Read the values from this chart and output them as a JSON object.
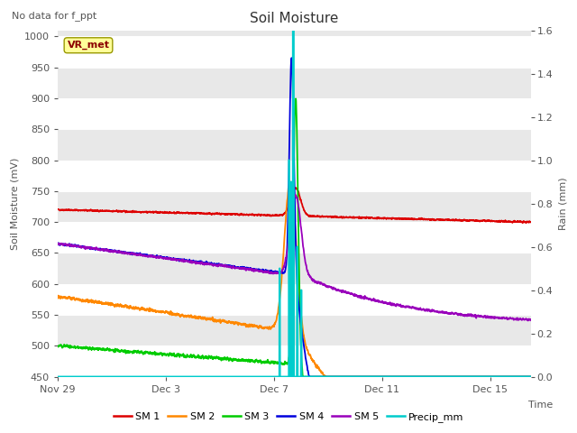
{
  "title": "Soil Moisture",
  "subtitle": "No data for f_ppt",
  "ylabel_left": "Soil Moisture (mV)",
  "ylabel_right": "Rain (mm)",
  "xlabel": "Time",
  "annotation": "VR_met",
  "plot_bg_color_light": "#f0f0f0",
  "plot_bg_color_dark": "#e0e0e0",
  "ylim_left": [
    450,
    1010
  ],
  "ylim_right": [
    0.0,
    1.6
  ],
  "yticks_left": [
    450,
    500,
    550,
    600,
    650,
    700,
    750,
    800,
    850,
    900,
    950,
    1000
  ],
  "yticks_right": [
    0.0,
    0.2,
    0.4,
    0.6,
    0.8,
    1.0,
    1.2,
    1.4,
    1.6
  ],
  "series_colors": {
    "SM1": "#dd0000",
    "SM2": "#ff8800",
    "SM3": "#00cc00",
    "SM4": "#0000dd",
    "SM5": "#9900bb",
    "Precip": "#00cccc"
  },
  "legend_labels": [
    "SM 1",
    "SM 2",
    "SM 3",
    "SM 4",
    "SM 5",
    "Precip_mm"
  ],
  "legend_colors": [
    "#dd0000",
    "#ff8800",
    "#00cc00",
    "#0000dd",
    "#9900bb",
    "#00cccc"
  ],
  "xtick_labels": [
    "Nov 29",
    "Dec 3",
    "Dec 7",
    "Dec 11",
    "Dec 15"
  ],
  "xtick_positions": [
    0,
    4,
    8,
    12,
    16
  ],
  "xlim": [
    0,
    17.5
  ]
}
